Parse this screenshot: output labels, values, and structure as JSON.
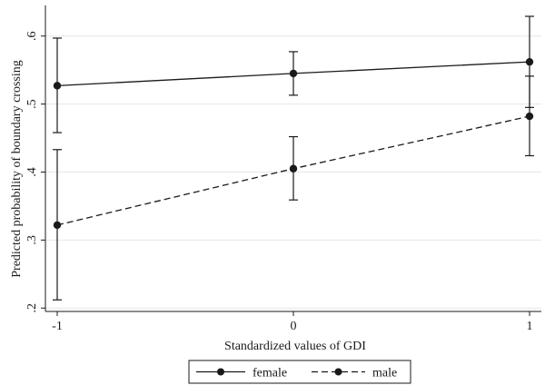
{
  "chart_data": {
    "type": "line",
    "title": "",
    "xlabel": "Standardized values of GDI",
    "ylabel": "Predicted probability of boundary crossing",
    "x": [
      -1,
      0,
      1
    ],
    "x_tick_labels": [
      "-1",
      "0",
      "1"
    ],
    "xlim": [
      -1,
      1
    ],
    "y_ticks": [
      0.2,
      0.3,
      0.4,
      0.5,
      0.6
    ],
    "y_tick_labels": [
      ".2",
      ".3",
      ".4",
      ".5",
      ".6"
    ],
    "ylim": [
      0.195,
      0.645
    ],
    "grid": "horizontal",
    "legend": "bottom-center",
    "series": [
      {
        "name": "female",
        "line_style": "solid",
        "values": [
          0.527,
          0.545,
          0.562
        ],
        "ci_low": [
          0.458,
          0.513,
          0.495
        ],
        "ci_high": [
          0.597,
          0.577,
          0.629
        ]
      },
      {
        "name": "male",
        "line_style": "dashed",
        "values": [
          0.322,
          0.405,
          0.482
        ],
        "ci_low": [
          0.212,
          0.359,
          0.424
        ],
        "ci_high": [
          0.433,
          0.452,
          0.541
        ]
      }
    ],
    "colors": {
      "line": "#1a1a1a",
      "grid": "#e6e6e6",
      "axis": "#1a1a1a",
      "background": "#ffffff"
    }
  }
}
